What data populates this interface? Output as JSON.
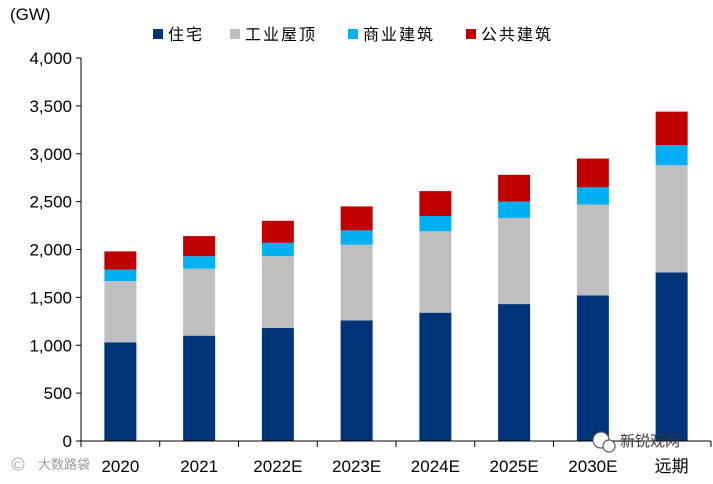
{
  "chart_data": {
    "type": "bar",
    "stacked": true,
    "unit_label": "(GW)",
    "categories": [
      "2020",
      "2021",
      "2022E",
      "2023E",
      "2024E",
      "2025E",
      "2030E",
      "远期"
    ],
    "series": [
      {
        "name": "住宅",
        "color": "#003478",
        "values": [
          1030,
          1100,
          1180,
          1260,
          1340,
          1430,
          1520,
          1760
        ]
      },
      {
        "name": "工业屋顶",
        "color": "#bfbfbf",
        "values": [
          640,
          700,
          750,
          790,
          850,
          900,
          950,
          1120
        ]
      },
      {
        "name": "商业建筑",
        "color": "#00b0f0",
        "values": [
          120,
          130,
          140,
          150,
          160,
          170,
          180,
          210
        ]
      },
      {
        "name": "公共建筑",
        "color": "#c00000",
        "values": [
          190,
          210,
          230,
          250,
          260,
          280,
          300,
          350
        ]
      }
    ],
    "ylim": [
      0,
      4000
    ],
    "yticks": [
      0,
      500,
      1000,
      1500,
      2000,
      2500,
      3000,
      3500,
      4000
    ],
    "ytick_labels": [
      "0",
      "500",
      "1,000",
      "1,500",
      "2,000",
      "2,500",
      "3,000",
      "3,500",
      "4,000"
    ],
    "legend_position": "top",
    "grid": false
  },
  "watermarks": {
    "left_text": "大数路袋",
    "right_text": "新锐观网"
  }
}
